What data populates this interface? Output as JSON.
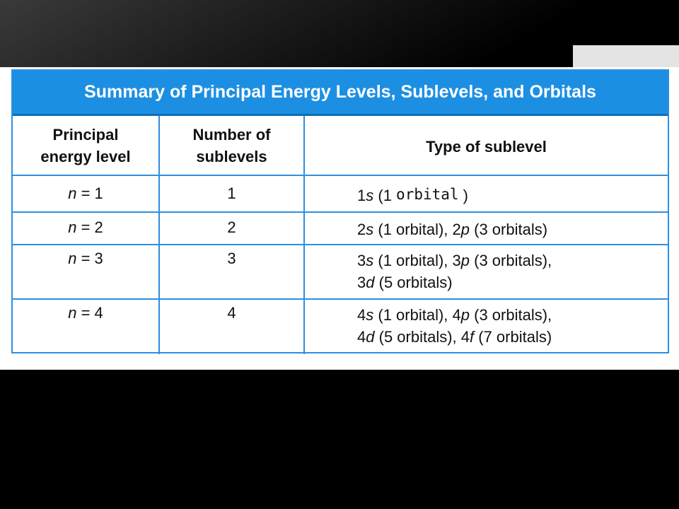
{
  "table": {
    "title": "Summary of Principal Energy Levels, Sublevels, and Orbitals",
    "headers": {
      "level_line1": "Principal",
      "level_line2": "energy level",
      "count_line1": "Number of",
      "count_line2": "sublevels",
      "type": "Type of sublevel"
    },
    "rows": [
      {
        "level_var": "n",
        "level_val": " = 1",
        "count": "1",
        "type_line1_a_num": "1",
        "type_line1_a_sub": "s",
        "type_line1_a_rest": " (1 ",
        "handwritten": "orbital",
        "type_line1_close": " )"
      },
      {
        "level_var": "n",
        "level_val": " = 2",
        "count": "2",
        "t1_num": "2",
        "t1_sub": "s",
        "t1_rest": " (1 orbital), ",
        "t2_num": "2",
        "t2_sub": "p",
        "t2_rest": " (3 orbitals)"
      },
      {
        "level_var": "n",
        "level_val": " = 3",
        "count": "3",
        "t1_num": "3",
        "t1_sub": "s",
        "t1_rest": " (1 orbital), ",
        "t2_num": "3",
        "t2_sub": "p",
        "t2_rest": " (3 orbitals),",
        "t3_num": "3",
        "t3_sub": "d",
        "t3_rest": " (5 orbitals)"
      },
      {
        "level_var": "n",
        "level_val": " = 4",
        "count": "4",
        "t1_num": "4",
        "t1_sub": "s",
        "t1_rest": " (1 orbital), ",
        "t2_num": "4",
        "t2_sub": "p",
        "t2_rest": " (3 orbitals),",
        "t3_num": "4",
        "t3_sub": "d",
        "t3_rest": " (5 orbitals), ",
        "t4_num": "4",
        "t4_sub": "f",
        "t4_rest": " (7 orbitals)"
      }
    ]
  }
}
